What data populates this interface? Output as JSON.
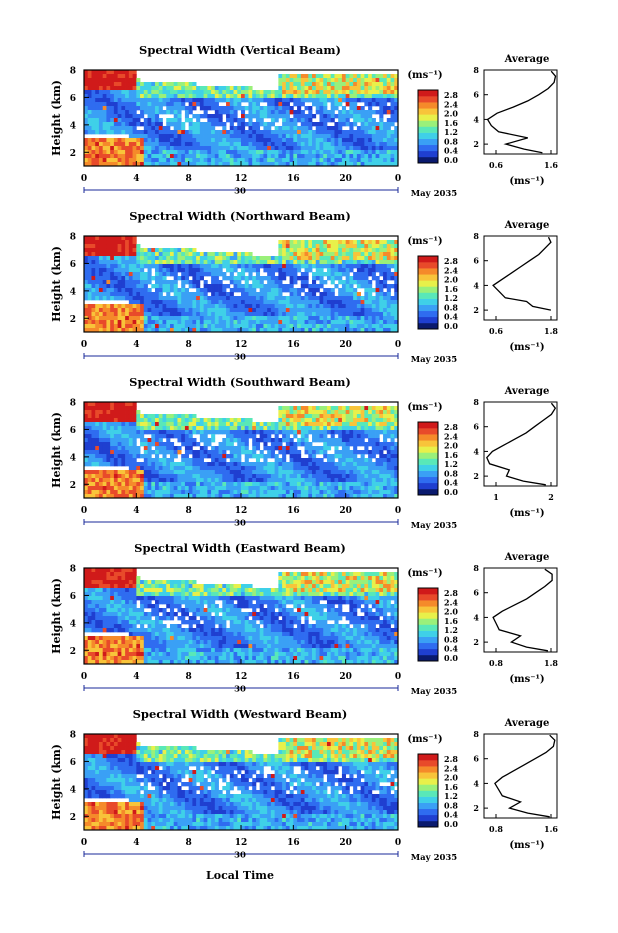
{
  "figure": {
    "date_label": "May 2035",
    "day_label": "30",
    "xlabel": "Local Time",
    "colorbar_label": "(ms⁻¹)",
    "colormap": [
      "#0a1a6e",
      "#1f3fd0",
      "#2f6cf0",
      "#3aa0f5",
      "#3fd0e8",
      "#59e8b8",
      "#9af07a",
      "#e8f04a",
      "#f8c43a",
      "#f58a2a",
      "#e84a2a",
      "#d01a1a"
    ]
  },
  "chart_data": [
    {
      "type": "heatmap",
      "title": "Spectral Width (Vertical Beam)",
      "xlabel": "",
      "ylabel": "Height (km)",
      "xlim": [
        0,
        24
      ],
      "ylim": [
        1,
        8
      ],
      "xticks": [
        "0",
        "4",
        "8",
        "12",
        "16",
        "20",
        "0"
      ],
      "yticks": [
        "2",
        "4",
        "6",
        "8"
      ],
      "colorbar": {
        "min": 0.0,
        "max": 2.8,
        "ticks": [
          "2.8",
          "2.4",
          "2.0",
          "1.6",
          "1.2",
          "0.8",
          "0.4",
          "0.0"
        ]
      },
      "average": {
        "title": "Average",
        "xlabel": "(ms⁻¹)",
        "xlim": [
          0.6,
          1.6
        ],
        "xticks": [
          "0.6",
          "1.6"
        ],
        "profile": [
          [
            1.3,
            1.4
          ],
          [
            1.6,
            1.15
          ],
          [
            2.0,
            0.9
          ],
          [
            2.5,
            1.2
          ],
          [
            3.0,
            0.8
          ],
          [
            3.5,
            0.7
          ],
          [
            4.0,
            0.65
          ],
          [
            4.5,
            0.78
          ],
          [
            5.0,
            1.0
          ],
          [
            5.5,
            1.2
          ],
          [
            6.0,
            1.35
          ],
          [
            6.5,
            1.48
          ],
          [
            7.0,
            1.56
          ],
          [
            7.5,
            1.58
          ],
          [
            7.9,
            1.52
          ]
        ]
      }
    },
    {
      "type": "heatmap",
      "title": "Spectral Width (Northward Beam)",
      "xlabel": "",
      "ylabel": "Height (km)",
      "xlim": [
        0,
        24
      ],
      "ylim": [
        1,
        8
      ],
      "xticks": [
        "0",
        "4",
        "8",
        "12",
        "16",
        "20",
        "0"
      ],
      "yticks": [
        "2",
        "4",
        "6",
        "8"
      ],
      "colorbar": {
        "min": 0.0,
        "max": 2.8,
        "ticks": [
          "2.8",
          "2.4",
          "2.0",
          "1.6",
          "1.2",
          "0.8",
          "0.4",
          "0.0"
        ]
      },
      "average": {
        "title": "Average",
        "xlabel": "(ms⁻¹)",
        "xlim": [
          0.6,
          1.8
        ],
        "xticks": [
          "0.6",
          "1.8"
        ],
        "profile": [
          [
            2.0,
            1.7
          ],
          [
            2.3,
            1.4
          ],
          [
            2.7,
            1.3
          ],
          [
            3.0,
            0.95
          ],
          [
            3.5,
            0.85
          ],
          [
            4.0,
            0.75
          ],
          [
            4.5,
            0.9
          ],
          [
            5.0,
            1.05
          ],
          [
            5.5,
            1.2
          ],
          [
            6.0,
            1.35
          ],
          [
            6.5,
            1.5
          ],
          [
            7.0,
            1.6
          ],
          [
            7.5,
            1.7
          ],
          [
            7.9,
            1.66
          ]
        ]
      }
    },
    {
      "type": "heatmap",
      "title": "Spectral Width (Southward Beam)",
      "xlabel": "",
      "ylabel": "Height (km)",
      "xlim": [
        0,
        24
      ],
      "ylim": [
        1,
        8
      ],
      "xticks": [
        "0",
        "4",
        "8",
        "12",
        "16",
        "20",
        "0"
      ],
      "yticks": [
        "2",
        "4",
        "6",
        "8"
      ],
      "colorbar": {
        "min": 0.0,
        "max": 2.8,
        "ticks": [
          "2.8",
          "2.4",
          "2.0",
          "1.6",
          "1.2",
          "0.8",
          "0.4",
          "0.0"
        ]
      },
      "average": {
        "title": "Average",
        "xlabel": "(ms⁻¹)",
        "xlim": [
          0.7,
          2.0
        ],
        "xticks": [
          "1",
          "2"
        ],
        "profile": [
          [
            1.3,
            1.8
          ],
          [
            1.6,
            1.4
          ],
          [
            2.0,
            1.1
          ],
          [
            2.5,
            1.15
          ],
          [
            3.0,
            0.8
          ],
          [
            3.5,
            0.75
          ],
          [
            4.0,
            0.85
          ],
          [
            4.5,
            1.05
          ],
          [
            5.0,
            1.25
          ],
          [
            5.5,
            1.45
          ],
          [
            6.0,
            1.6
          ],
          [
            6.5,
            1.75
          ],
          [
            7.0,
            1.9
          ],
          [
            7.5,
            1.97
          ],
          [
            7.9,
            1.9
          ]
        ]
      }
    },
    {
      "type": "heatmap",
      "title": "Spectral Width (Eastward Beam)",
      "xlabel": "",
      "ylabel": "Height (km)",
      "xlim": [
        0,
        24
      ],
      "ylim": [
        1,
        8
      ],
      "xticks": [
        "0",
        "4",
        "8",
        "12",
        "16",
        "20",
        "0"
      ],
      "yticks": [
        "2",
        "4",
        "6",
        "8"
      ],
      "colorbar": {
        "min": 0.0,
        "max": 2.8,
        "ticks": [
          "2.8",
          "2.4",
          "2.0",
          "1.6",
          "1.2",
          "0.8",
          "0.4",
          "0.0"
        ]
      },
      "average": {
        "title": "Average",
        "xlabel": "(ms⁻¹)",
        "xlim": [
          0.6,
          1.8
        ],
        "xticks": [
          "0.8",
          "1.8"
        ],
        "profile": [
          [
            1.3,
            1.65
          ],
          [
            1.6,
            1.3
          ],
          [
            2.0,
            1.05
          ],
          [
            2.5,
            1.2
          ],
          [
            3.0,
            0.85
          ],
          [
            3.5,
            0.8
          ],
          [
            4.0,
            0.75
          ],
          [
            4.5,
            0.9
          ],
          [
            5.0,
            1.1
          ],
          [
            5.5,
            1.3
          ],
          [
            6.0,
            1.45
          ],
          [
            6.5,
            1.6
          ],
          [
            7.0,
            1.72
          ],
          [
            7.5,
            1.72
          ],
          [
            7.9,
            1.6
          ]
        ]
      }
    },
    {
      "type": "heatmap",
      "title": "Spectral Width (Westward Beam)",
      "xlabel": "Local Time",
      "ylabel": "Height (km)",
      "xlim": [
        0,
        24
      ],
      "ylim": [
        1,
        8
      ],
      "xticks": [
        "0",
        "4",
        "8",
        "12",
        "16",
        "20",
        "0"
      ],
      "yticks": [
        "2",
        "4",
        "6",
        "8"
      ],
      "colorbar": {
        "min": 0.0,
        "max": 2.8,
        "ticks": [
          "2.8",
          "2.4",
          "2.0",
          "1.6",
          "1.2",
          "0.8",
          "0.4",
          "0.0"
        ]
      },
      "average": {
        "title": "Average",
        "xlabel": "(ms⁻¹)",
        "xlim": [
          0.6,
          1.6
        ],
        "xticks": [
          "0.8",
          "1.6"
        ],
        "profile": [
          [
            1.3,
            1.5
          ],
          [
            1.6,
            1.2
          ],
          [
            2.0,
            0.95
          ],
          [
            2.5,
            1.1
          ],
          [
            3.0,
            0.85
          ],
          [
            3.5,
            0.8
          ],
          [
            4.0,
            0.75
          ],
          [
            4.5,
            0.85
          ],
          [
            5.0,
            1.0
          ],
          [
            5.5,
            1.15
          ],
          [
            6.0,
            1.3
          ],
          [
            6.5,
            1.45
          ],
          [
            7.0,
            1.55
          ],
          [
            7.5,
            1.57
          ],
          [
            7.9,
            1.5
          ]
        ]
      }
    }
  ]
}
